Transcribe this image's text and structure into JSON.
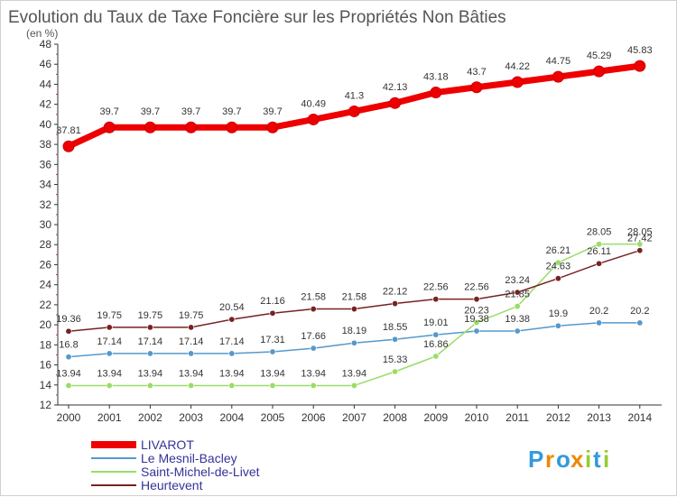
{
  "chart_data": {
    "type": "line",
    "title": "Evolution du Taux de Taxe Foncière sur les Propriétés Non Bâties",
    "subtitle": "(en %)",
    "xlabel": "",
    "ylabel": "",
    "ylim": [
      12,
      48
    ],
    "yticks": [
      12,
      14,
      16,
      18,
      20,
      22,
      24,
      26,
      28,
      30,
      32,
      34,
      36,
      38,
      40,
      42,
      44,
      46,
      48
    ],
    "grid": false,
    "legend_position": "bottom-left",
    "x": [
      "2000",
      "2001",
      "2002",
      "2003",
      "2004",
      "2005",
      "2006",
      "2007",
      "2008",
      "2009",
      "2010",
      "2011",
      "2012",
      "2013",
      "2014"
    ],
    "series": [
      {
        "name": "LIVAROT",
        "color": "#ee0000",
        "values": [
          37.81,
          39.7,
          39.7,
          39.7,
          39.7,
          39.7,
          40.49,
          41.3,
          42.13,
          43.18,
          43.7,
          44.22,
          44.75,
          45.29,
          45.83
        ],
        "labels": [
          "37.81",
          "39.7",
          "39.7",
          "39.7",
          "39.7",
          "39.7",
          "40.49",
          "41.3",
          "42.13",
          "43.18",
          "43.7",
          "44.22",
          "44.75",
          "45.29",
          "45.83"
        ]
      },
      {
        "name": "Le Mesnil-Bacley",
        "color": "#5599cc",
        "values": [
          16.8,
          17.14,
          17.14,
          17.14,
          17.14,
          17.31,
          17.66,
          18.19,
          18.55,
          19.01,
          19.38,
          19.38,
          19.9,
          20.2,
          20.2
        ],
        "labels": [
          "16.8",
          "17.14",
          "17.14",
          "17.14",
          "17.14",
          "17.31",
          "17.66",
          "18.19",
          "18.55",
          "19.01",
          "19.38",
          "19.38",
          "19.9",
          "20.2",
          "20.2"
        ]
      },
      {
        "name": "Saint-Michel-de-Livet",
        "color": "#99dd66",
        "values": [
          13.94,
          13.94,
          13.94,
          13.94,
          13.94,
          13.94,
          13.94,
          13.94,
          15.33,
          16.86,
          20.23,
          21.85,
          26.21,
          28.05,
          28.05
        ],
        "labels": [
          "13.94",
          "13.94",
          "13.94",
          "13.94",
          "13.94",
          "13.94",
          "13.94",
          "13.94",
          "15.33",
          "16.86",
          "20.23",
          "21.85",
          "26.21",
          "28.05",
          "28.05"
        ]
      },
      {
        "name": "Heurtevent",
        "color": "#772222",
        "values": [
          19.36,
          19.75,
          19.75,
          19.75,
          20.54,
          21.16,
          21.58,
          21.58,
          22.12,
          22.56,
          22.56,
          23.24,
          24.63,
          26.11,
          27.42
        ],
        "labels": [
          "19.36",
          "19.75",
          "19.75",
          "19.75",
          "20.54",
          "21.16",
          "21.58",
          "21.58",
          "22.12",
          "22.56",
          "22.56",
          "23.24",
          "24.63",
          "26.11",
          "27.42"
        ]
      }
    ]
  },
  "logo": {
    "letters": [
      "P",
      "r",
      "o",
      "x",
      "i",
      "t",
      "i"
    ],
    "colors": [
      "#3399dd",
      "#ee8800",
      "#3399dd",
      "#ee8800",
      "#99cc33",
      "#3399dd",
      "#99cc33"
    ]
  }
}
